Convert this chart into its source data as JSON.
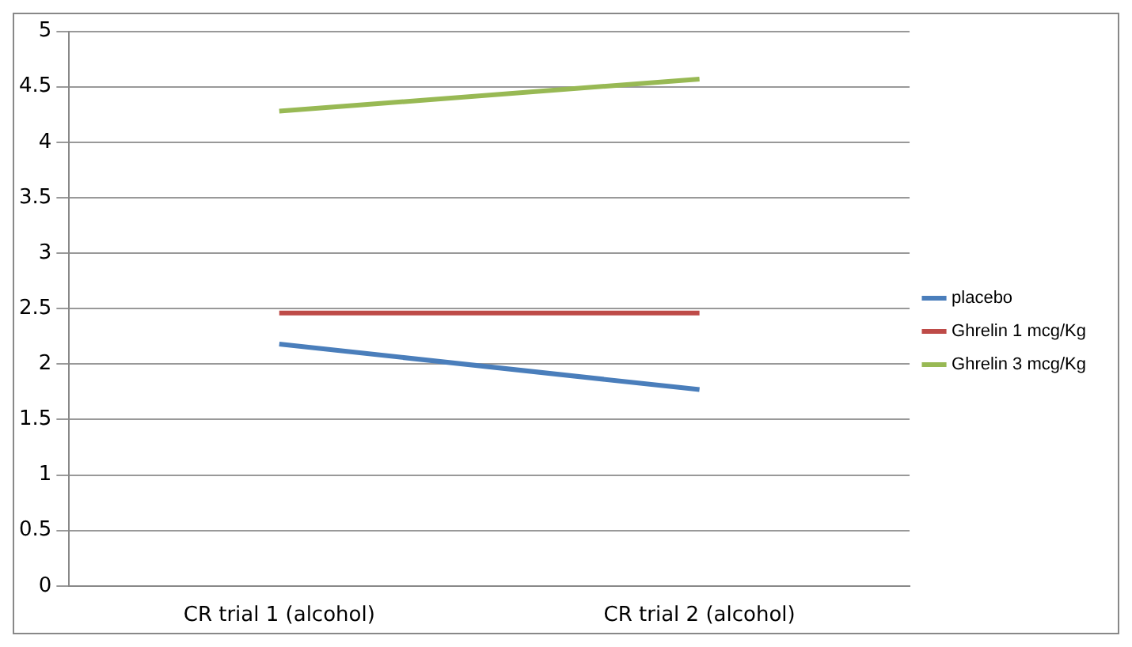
{
  "chart_data": {
    "type": "line",
    "categories": [
      "CR trial 1 (alcohol)",
      "CR trial 2 (alcohol)"
    ],
    "series": [
      {
        "name": "placebo",
        "color": "#4a7ebb",
        "values": [
          2.18,
          1.77
        ]
      },
      {
        "name": "Ghrelin 1 mcg/Kg",
        "color": "#be4b48",
        "values": [
          2.46,
          2.46
        ]
      },
      {
        "name": "Ghrelin 3 mcg/Kg",
        "color": "#98b954",
        "values": [
          4.28,
          4.57
        ]
      }
    ],
    "ylim": [
      0,
      5
    ],
    "yticks": [
      0,
      0.5,
      1,
      1.5,
      2,
      2.5,
      3,
      3.5,
      4,
      4.5,
      5
    ],
    "grid": "y",
    "legend": "right",
    "marker": "none"
  }
}
